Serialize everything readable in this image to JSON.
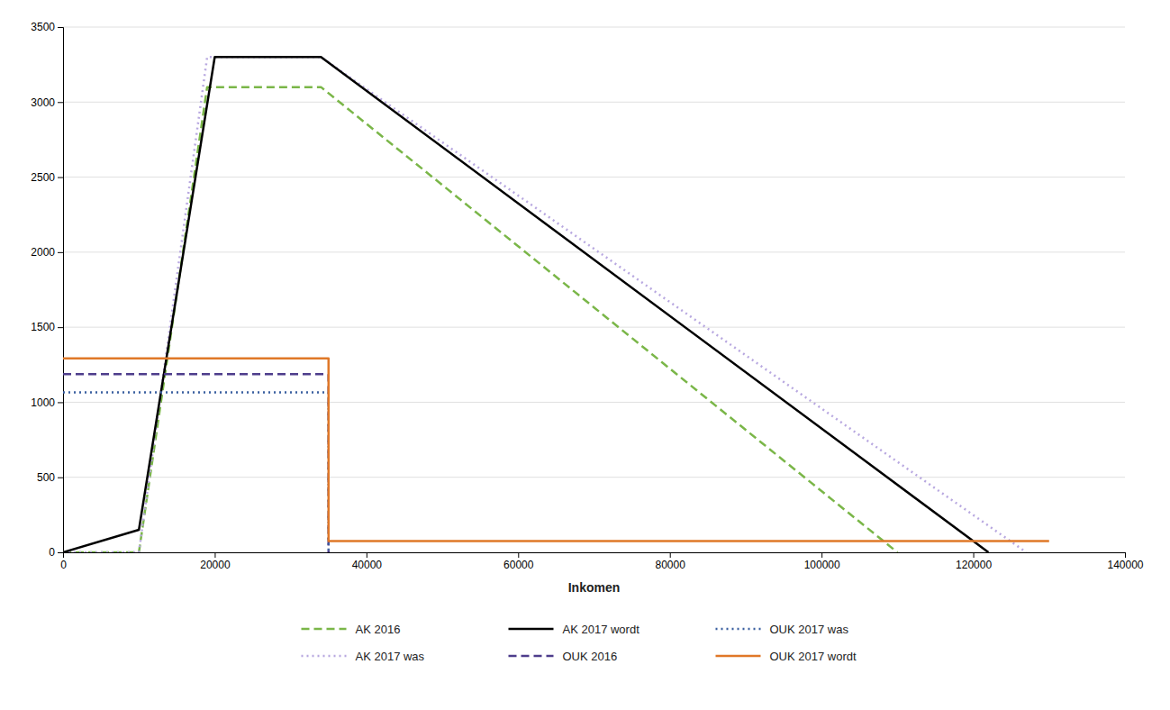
{
  "chart_data": {
    "type": "line",
    "xlabel": "Inkomen",
    "xlim": [
      0,
      140000
    ],
    "ylim": [
      0,
      3500
    ],
    "xticks": [
      0,
      20000,
      40000,
      60000,
      80000,
      100000,
      120000,
      140000
    ],
    "yticks": [
      0,
      500,
      1000,
      1500,
      2000,
      2500,
      3000,
      3500
    ],
    "grid": true,
    "legend": "bottom",
    "series": [
      {
        "name": "AK 2016",
        "color": "#7ab648",
        "line_style": "dashed",
        "x": [
          0,
          10000,
          19000,
          34000,
          110000
        ],
        "values": [
          0,
          0,
          3100,
          3100,
          0
        ]
      },
      {
        "name": "AK 2017 was",
        "color": "#b8a8e0",
        "line_style": "dotted",
        "x": [
          0,
          10000,
          19000,
          34000,
          127000
        ],
        "values": [
          0,
          0,
          3300,
          3300,
          0
        ]
      },
      {
        "name": "AK 2017 wordt",
        "color": "#000000",
        "line_style": "solid",
        "x": [
          0,
          10000,
          20000,
          34000,
          122000
        ],
        "values": [
          0,
          150,
          3300,
          3300,
          0
        ]
      },
      {
        "name": "OUK 2016",
        "color": "#4e3d8c",
        "line_style": "dashed",
        "x": [
          0,
          35000,
          35000
        ],
        "values": [
          1187,
          1187,
          0
        ]
      },
      {
        "name": "OUK 2017 was",
        "color": "#3a5fa0",
        "line_style": "dotted",
        "x": [
          0,
          35000,
          35000
        ],
        "values": [
          1065,
          1065,
          0
        ]
      },
      {
        "name": "OUK 2017 wordt",
        "color": "#e07828",
        "line_style": "solid",
        "x": [
          0,
          35000,
          35000,
          130000
        ],
        "values": [
          1292,
          1292,
          75,
          75
        ]
      }
    ]
  }
}
